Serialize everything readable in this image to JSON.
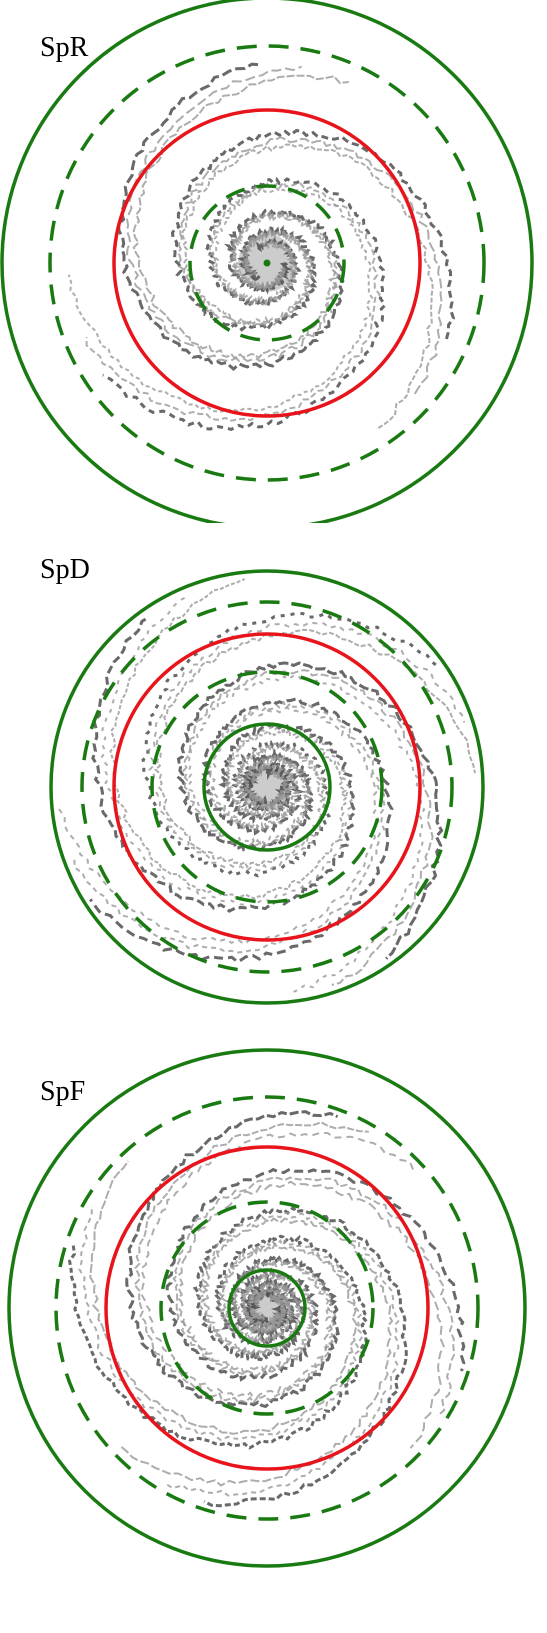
{
  "panels": [
    {
      "label": "SpR"
    },
    {
      "label": "SpD"
    },
    {
      "label": "SpF"
    }
  ]
}
